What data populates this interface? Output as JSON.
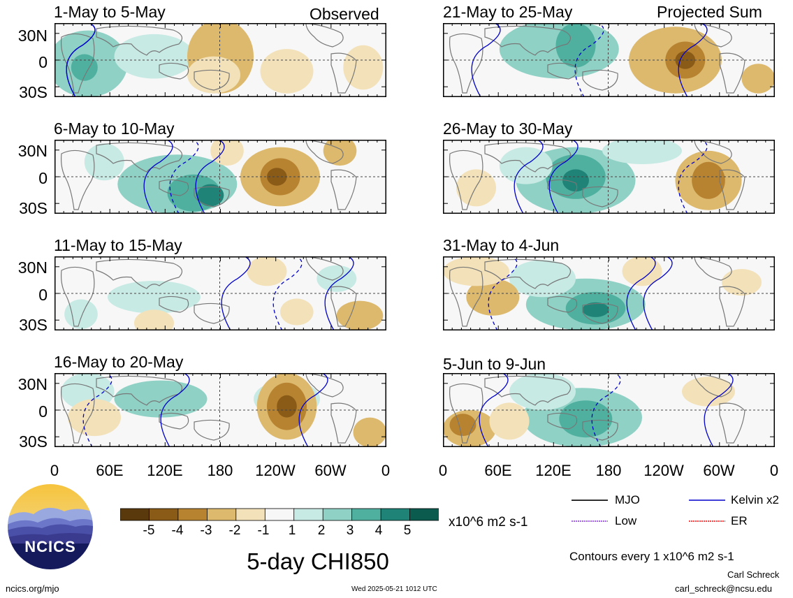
{
  "header": {
    "observed_label": "Observed",
    "projected_label": "Projected Sum"
  },
  "panels": [
    {
      "title": "1-May to 5-May",
      "pattern": "a"
    },
    {
      "title": "6-May to 10-May",
      "pattern": "b"
    },
    {
      "title": "11-May to 15-May",
      "pattern": "c"
    },
    {
      "title": "16-May to 20-May",
      "pattern": "d"
    },
    {
      "title": "21-May to 25-May",
      "pattern": "e"
    },
    {
      "title": "26-May to 30-May",
      "pattern": "f"
    },
    {
      "title": "31-May to 4-Jun",
      "pattern": "g"
    },
    {
      "title": "5-Jun to 9-Jun",
      "pattern": "h"
    }
  ],
  "axes": {
    "y_labels": [
      "30N",
      "0",
      "30S"
    ],
    "x_labels": [
      "0",
      "60E",
      "120E",
      "180",
      "120W",
      "60W",
      "0"
    ]
  },
  "colorbar": {
    "labels": [
      "-5",
      "-4",
      "-3",
      "-2",
      "-1",
      "1",
      "2",
      "3",
      "4",
      "5"
    ],
    "colors": [
      "#5a3a0c",
      "#8a5a17",
      "#b78330",
      "#ddb96e",
      "#f3e2b9",
      "#f7f7f7",
      "#c7eae4",
      "#8fd1c5",
      "#4fb0a0",
      "#1f8377",
      "#0b5b4f"
    ],
    "units": "x10^6 m2 s-1"
  },
  "legend": {
    "items": [
      {
        "label": "MJO",
        "color": "#000000"
      },
      {
        "label": "Kelvin x2",
        "color": "#0000cc"
      },
      {
        "label": "Low",
        "color": "#8a2be2"
      },
      {
        "label": "ER",
        "color": "#ff0000"
      }
    ],
    "contour_note": "Contours every 1 x10^6 m2 s-1"
  },
  "title": "5-day CHI850",
  "logo_text": "NCICS",
  "footer": {
    "url": "ncics.org/mjo",
    "timestamp": "Wed 2025-05-21 1012 UTC",
    "author": "Carl Schreck",
    "email": "carl_schreck@ncsu.edu"
  }
}
